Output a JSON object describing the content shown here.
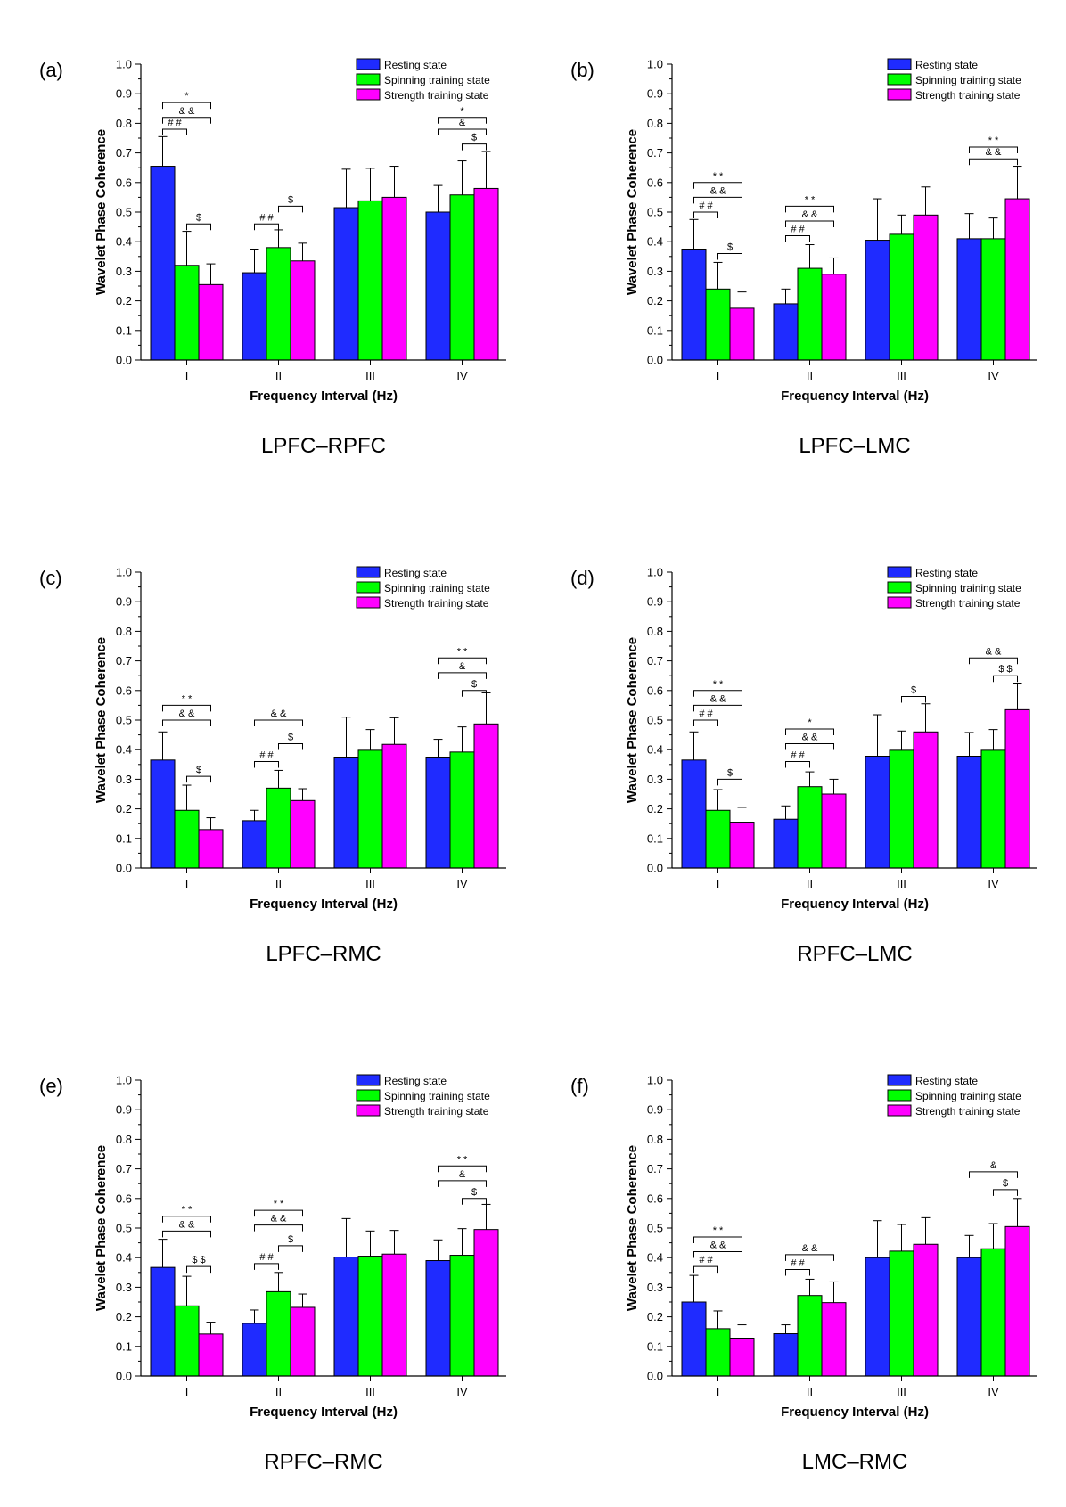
{
  "colors": {
    "rest": "#1f2bff",
    "spin": "#00ff00",
    "str": "#ff00ff",
    "axis": "#000000"
  },
  "chart_data": [
    {
      "panel_label": "(a)",
      "caption": "LPFC–RPFC",
      "type": "bar",
      "categories": [
        "I",
        "II",
        "III",
        "IV"
      ],
      "xlabel": "Frequency Interval (Hz)",
      "ylabel": "Wavelet Phase Coherence",
      "ylim": [
        0,
        1.0
      ],
      "yticks": [
        "0.0",
        "0.1",
        "0.2",
        "0.3",
        "0.4",
        "0.5",
        "0.6",
        "0.7",
        "0.8",
        "0.9",
        "1.0"
      ],
      "legend": [
        "Resting state",
        "Spinning training state",
        "Strength training state"
      ],
      "series": [
        {
          "name": "Resting state",
          "values": [
            0.655,
            0.295,
            0.515,
            0.5
          ],
          "err": [
            0.1,
            0.08,
            0.13,
            0.09
          ]
        },
        {
          "name": "Spinning training state",
          "values": [
            0.32,
            0.38,
            0.538,
            0.558
          ],
          "err": [
            0.115,
            0.06,
            0.11,
            0.115
          ]
        },
        {
          "name": "Strength training state",
          "values": [
            0.255,
            0.335,
            0.55,
            0.58
          ],
          "err": [
            0.07,
            0.06,
            0.105,
            0.125
          ]
        }
      ],
      "annotations": [
        {
          "group": 0,
          "from": 0,
          "to": 1,
          "level": 0.78,
          "text": "# #"
        },
        {
          "group": 0,
          "from": 0,
          "to": 2,
          "level": 0.82,
          "text": "& &"
        },
        {
          "group": 0,
          "from": 0,
          "to": 2,
          "level": 0.87,
          "text": "*"
        },
        {
          "group": 0,
          "from": 1,
          "to": 2,
          "level": 0.46,
          "text": "$"
        },
        {
          "group": 1,
          "from": 0,
          "to": 1,
          "level": 0.46,
          "text": "# #"
        },
        {
          "group": 1,
          "from": 1,
          "to": 2,
          "level": 0.52,
          "text": "$"
        },
        {
          "group": 3,
          "from": 1,
          "to": 2,
          "level": 0.73,
          "text": "$"
        },
        {
          "group": 3,
          "from": 0,
          "to": 2,
          "level": 0.78,
          "text": "&"
        },
        {
          "group": 3,
          "from": 0,
          "to": 2,
          "level": 0.82,
          "text": "*"
        }
      ]
    },
    {
      "panel_label": "(b)",
      "caption": "LPFC–LMC",
      "type": "bar",
      "categories": [
        "I",
        "II",
        "III",
        "IV"
      ],
      "xlabel": "Frequency Interval (Hz)",
      "ylabel": "Wavelet Phase Coherence",
      "ylim": [
        0,
        1.0
      ],
      "yticks": [
        "0.0",
        "0.1",
        "0.2",
        "0.3",
        "0.4",
        "0.5",
        "0.6",
        "0.7",
        "0.8",
        "0.9",
        "1.0"
      ],
      "legend": [
        "Resting state",
        "Spinning training state",
        "Strength training state"
      ],
      "series": [
        {
          "name": "Resting state",
          "values": [
            0.375,
            0.19,
            0.405,
            0.41
          ],
          "err": [
            0.1,
            0.05,
            0.14,
            0.085
          ]
        },
        {
          "name": "Spinning training state",
          "values": [
            0.24,
            0.31,
            0.425,
            0.41
          ],
          "err": [
            0.09,
            0.08,
            0.065,
            0.07
          ]
        },
        {
          "name": "Strength training state",
          "values": [
            0.175,
            0.29,
            0.49,
            0.545
          ],
          "err": [
            0.055,
            0.055,
            0.095,
            0.11
          ]
        }
      ],
      "annotations": [
        {
          "group": 0,
          "from": 0,
          "to": 1,
          "level": 0.5,
          "text": "# #"
        },
        {
          "group": 0,
          "from": 0,
          "to": 2,
          "level": 0.55,
          "text": "& &"
        },
        {
          "group": 0,
          "from": 0,
          "to": 2,
          "level": 0.6,
          "text": "* *"
        },
        {
          "group": 0,
          "from": 1,
          "to": 2,
          "level": 0.36,
          "text": "$"
        },
        {
          "group": 1,
          "from": 0,
          "to": 1,
          "level": 0.42,
          "text": "# #"
        },
        {
          "group": 1,
          "from": 0,
          "to": 2,
          "level": 0.47,
          "text": "& &"
        },
        {
          "group": 1,
          "from": 0,
          "to": 2,
          "level": 0.52,
          "text": "* *"
        },
        {
          "group": 3,
          "from": 0,
          "to": 2,
          "level": 0.68,
          "text": "& &"
        },
        {
          "group": 3,
          "from": 0,
          "to": 2,
          "level": 0.72,
          "text": "* *"
        }
      ]
    },
    {
      "panel_label": "(c)",
      "caption": "LPFC–RMC",
      "type": "bar",
      "categories": [
        "I",
        "II",
        "III",
        "IV"
      ],
      "xlabel": "Frequency Interval (Hz)",
      "ylabel": "Wavelet Phase Coherence",
      "ylim": [
        0,
        1.0
      ],
      "yticks": [
        "0.0",
        "0.1",
        "0.2",
        "0.3",
        "0.4",
        "0.5",
        "0.6",
        "0.7",
        "0.8",
        "0.9",
        "1.0"
      ],
      "legend": [
        "Resting state",
        "Spinning training state",
        "Strength training state"
      ],
      "series": [
        {
          "name": "Resting state",
          "values": [
            0.365,
            0.16,
            0.375,
            0.375
          ],
          "err": [
            0.095,
            0.035,
            0.135,
            0.06
          ]
        },
        {
          "name": "Spinning training state",
          "values": [
            0.195,
            0.27,
            0.398,
            0.392
          ],
          "err": [
            0.085,
            0.06,
            0.07,
            0.085
          ]
        },
        {
          "name": "Strength training state",
          "values": [
            0.13,
            0.228,
            0.418,
            0.487
          ],
          "err": [
            0.04,
            0.04,
            0.09,
            0.105
          ]
        }
      ],
      "annotations": [
        {
          "group": 0,
          "from": 1,
          "to": 2,
          "level": 0.31,
          "text": "$"
        },
        {
          "group": 0,
          "from": 0,
          "to": 2,
          "level": 0.5,
          "text": "& &"
        },
        {
          "group": 0,
          "from": 0,
          "to": 2,
          "level": 0.55,
          "text": "* *"
        },
        {
          "group": 1,
          "from": 0,
          "to": 1,
          "level": 0.36,
          "text": "# #"
        },
        {
          "group": 1,
          "from": 1,
          "to": 2,
          "level": 0.42,
          "text": "$"
        },
        {
          "group": 1,
          "from": 0,
          "to": 2,
          "level": 0.5,
          "text": "& &"
        },
        {
          "group": 3,
          "from": 1,
          "to": 2,
          "level": 0.6,
          "text": "$"
        },
        {
          "group": 3,
          "from": 0,
          "to": 2,
          "level": 0.66,
          "text": "&"
        },
        {
          "group": 3,
          "from": 0,
          "to": 2,
          "level": 0.71,
          "text": "* *"
        }
      ]
    },
    {
      "panel_label": "(d)",
      "caption": "RPFC–LMC",
      "type": "bar",
      "categories": [
        "I",
        "II",
        "III",
        "IV"
      ],
      "xlabel": "Frequency Interval (Hz)",
      "ylabel": "Wavelet Phase Coherence",
      "ylim": [
        0,
        1.0
      ],
      "yticks": [
        "0.0",
        "0.1",
        "0.2",
        "0.3",
        "0.4",
        "0.5",
        "0.6",
        "0.7",
        "0.8",
        "0.9",
        "1.0"
      ],
      "legend": [
        "Resting state",
        "Spinning training state",
        "Strength training state"
      ],
      "series": [
        {
          "name": "Resting state",
          "values": [
            0.365,
            0.165,
            0.378,
            0.378
          ],
          "err": [
            0.095,
            0.045,
            0.14,
            0.08
          ]
        },
        {
          "name": "Spinning training state",
          "values": [
            0.195,
            0.275,
            0.398,
            0.398
          ],
          "err": [
            0.07,
            0.05,
            0.065,
            0.07
          ]
        },
        {
          "name": "Strength training state",
          "values": [
            0.155,
            0.25,
            0.46,
            0.535
          ],
          "err": [
            0.05,
            0.05,
            0.095,
            0.09
          ]
        }
      ],
      "annotations": [
        {
          "group": 0,
          "from": 1,
          "to": 2,
          "level": 0.3,
          "text": "$"
        },
        {
          "group": 0,
          "from": 0,
          "to": 1,
          "level": 0.5,
          "text": "# #"
        },
        {
          "group": 0,
          "from": 0,
          "to": 2,
          "level": 0.55,
          "text": "& &"
        },
        {
          "group": 0,
          "from": 0,
          "to": 2,
          "level": 0.6,
          "text": "* *"
        },
        {
          "group": 1,
          "from": 0,
          "to": 1,
          "level": 0.36,
          "text": "# #"
        },
        {
          "group": 1,
          "from": 0,
          "to": 2,
          "level": 0.42,
          "text": "& &"
        },
        {
          "group": 1,
          "from": 0,
          "to": 2,
          "level": 0.47,
          "text": "*"
        },
        {
          "group": 2,
          "from": 1,
          "to": 2,
          "level": 0.58,
          "text": "$"
        },
        {
          "group": 3,
          "from": 1,
          "to": 2,
          "level": 0.65,
          "text": "$ $"
        },
        {
          "group": 3,
          "from": 0,
          "to": 2,
          "level": 0.71,
          "text": "& &"
        }
      ]
    },
    {
      "panel_label": "(e)",
      "caption": "RPFC–RMC",
      "type": "bar",
      "categories": [
        "I",
        "II",
        "III",
        "IV"
      ],
      "xlabel": "Frequency Interval (Hz)",
      "ylabel": "Wavelet Phase Coherence",
      "ylim": [
        0,
        1.0
      ],
      "yticks": [
        "0.0",
        "0.1",
        "0.2",
        "0.3",
        "0.4",
        "0.5",
        "0.6",
        "0.7",
        "0.8",
        "0.9",
        "1.0"
      ],
      "legend": [
        "Resting state",
        "Spinning training state",
        "Strength training state"
      ],
      "series": [
        {
          "name": "Resting state",
          "values": [
            0.367,
            0.178,
            0.402,
            0.39
          ],
          "err": [
            0.095,
            0.045,
            0.13,
            0.07
          ]
        },
        {
          "name": "Spinning training state",
          "values": [
            0.237,
            0.285,
            0.405,
            0.408
          ],
          "err": [
            0.1,
            0.065,
            0.085,
            0.09
          ]
        },
        {
          "name": "Strength training state",
          "values": [
            0.142,
            0.232,
            0.412,
            0.495
          ],
          "err": [
            0.04,
            0.045,
            0.08,
            0.085
          ]
        }
      ],
      "annotations": [
        {
          "group": 0,
          "from": 1,
          "to": 2,
          "level": 0.37,
          "text": "$ $"
        },
        {
          "group": 0,
          "from": 0,
          "to": 2,
          "level": 0.49,
          "text": "& &"
        },
        {
          "group": 0,
          "from": 0,
          "to": 2,
          "level": 0.54,
          "text": "* *"
        },
        {
          "group": 1,
          "from": 0,
          "to": 1,
          "level": 0.38,
          "text": "# #"
        },
        {
          "group": 1,
          "from": 1,
          "to": 2,
          "level": 0.44,
          "text": "$"
        },
        {
          "group": 1,
          "from": 0,
          "to": 2,
          "level": 0.51,
          "text": "& &"
        },
        {
          "group": 1,
          "from": 0,
          "to": 2,
          "level": 0.56,
          "text": "* *"
        },
        {
          "group": 3,
          "from": 1,
          "to": 2,
          "level": 0.6,
          "text": "$"
        },
        {
          "group": 3,
          "from": 0,
          "to": 2,
          "level": 0.66,
          "text": "&"
        },
        {
          "group": 3,
          "from": 0,
          "to": 2,
          "level": 0.71,
          "text": "* *"
        }
      ]
    },
    {
      "panel_label": "(f)",
      "caption": "LMC–RMC",
      "type": "bar",
      "categories": [
        "I",
        "II",
        "III",
        "IV"
      ],
      "xlabel": "Frequency Interval (Hz)",
      "ylabel": "Wavelet Phase Coherence",
      "ylim": [
        0,
        1.0
      ],
      "yticks": [
        "0.0",
        "0.1",
        "0.2",
        "0.3",
        "0.4",
        "0.5",
        "0.6",
        "0.7",
        "0.8",
        "0.9",
        "1.0"
      ],
      "legend": [
        "Resting state",
        "Spinning training state",
        "Strength training state"
      ],
      "series": [
        {
          "name": "Resting state",
          "values": [
            0.25,
            0.143,
            0.4,
            0.4
          ],
          "err": [
            0.09,
            0.03,
            0.125,
            0.075
          ]
        },
        {
          "name": "Spinning training state",
          "values": [
            0.16,
            0.272,
            0.422,
            0.43
          ],
          "err": [
            0.06,
            0.055,
            0.09,
            0.085
          ]
        },
        {
          "name": "Strength training state",
          "values": [
            0.128,
            0.248,
            0.445,
            0.505
          ],
          "err": [
            0.045,
            0.07,
            0.09,
            0.095
          ]
        }
      ],
      "annotations": [
        {
          "group": 0,
          "from": 0,
          "to": 1,
          "level": 0.37,
          "text": "# #"
        },
        {
          "group": 0,
          "from": 0,
          "to": 2,
          "level": 0.42,
          "text": "& &"
        },
        {
          "group": 0,
          "from": 0,
          "to": 2,
          "level": 0.47,
          "text": "* *"
        },
        {
          "group": 1,
          "from": 0,
          "to": 1,
          "level": 0.36,
          "text": "# #"
        },
        {
          "group": 1,
          "from": 0,
          "to": 2,
          "level": 0.41,
          "text": "& &"
        },
        {
          "group": 3,
          "from": 1,
          "to": 2,
          "level": 0.63,
          "text": "$"
        },
        {
          "group": 3,
          "from": 0,
          "to": 2,
          "level": 0.69,
          "text": "&"
        }
      ]
    }
  ]
}
